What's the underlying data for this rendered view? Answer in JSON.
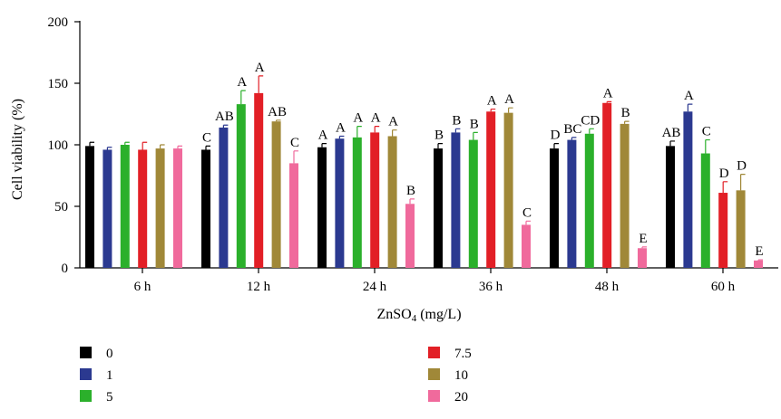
{
  "chart_data": {
    "type": "bar",
    "title": "",
    "xlabel": "ZnSO",
    "xlabel_sub": "4",
    "xlabel_unit": " (mg/L)",
    "ylabel": "Cell viability (%)",
    "ylim": [
      0,
      200
    ],
    "yticks": [
      0,
      50,
      100,
      150,
      200
    ],
    "categories": [
      "6 h",
      "12 h",
      "24 h",
      "36 h",
      "48 h",
      "60 h"
    ],
    "legend_placement": "bottom-left, two columns",
    "series": [
      {
        "name": "0",
        "color": "#000000",
        "values": [
          99,
          96,
          98,
          97,
          97,
          99
        ],
        "errors": [
          3,
          3,
          3,
          4,
          4,
          4
        ],
        "letters": [
          "",
          "C",
          "A",
          "B",
          "D",
          "AB"
        ]
      },
      {
        "name": "1",
        "color": "#2b3990",
        "values": [
          96,
          114,
          105,
          110,
          104,
          127
        ],
        "errors": [
          2,
          2,
          2,
          3,
          2,
          6
        ],
        "letters": [
          "",
          "AB",
          "A",
          "B",
          "BC",
          "A"
        ]
      },
      {
        "name": "5",
        "color": "#2bb02b",
        "values": [
          100,
          133,
          106,
          104,
          109,
          93
        ],
        "errors": [
          2,
          11,
          9,
          6,
          4,
          11
        ],
        "letters": [
          "",
          "A",
          "A",
          "B",
          "CD",
          "C"
        ]
      },
      {
        "name": "7.5",
        "color": "#e21f26",
        "values": [
          96,
          142,
          110,
          127,
          134,
          61
        ],
        "errors": [
          6,
          14,
          5,
          2,
          1,
          9
        ],
        "letters": [
          "",
          "A",
          "A",
          "A",
          "A",
          "D"
        ]
      },
      {
        "name": "10",
        "color": "#a08838",
        "values": [
          97,
          119,
          107,
          126,
          117,
          63
        ],
        "errors": [
          3,
          1,
          5,
          4,
          2,
          13
        ],
        "letters": [
          "",
          "AB",
          "A",
          "A",
          "B",
          "D"
        ]
      },
      {
        "name": "20",
        "color": "#f06a9c",
        "values": [
          97,
          85,
          52,
          35,
          16,
          6
        ],
        "errors": [
          2,
          10,
          4,
          3,
          1,
          0.5
        ],
        "letters": [
          "",
          "C",
          "B",
          "C",
          "E",
          "E"
        ]
      }
    ]
  }
}
